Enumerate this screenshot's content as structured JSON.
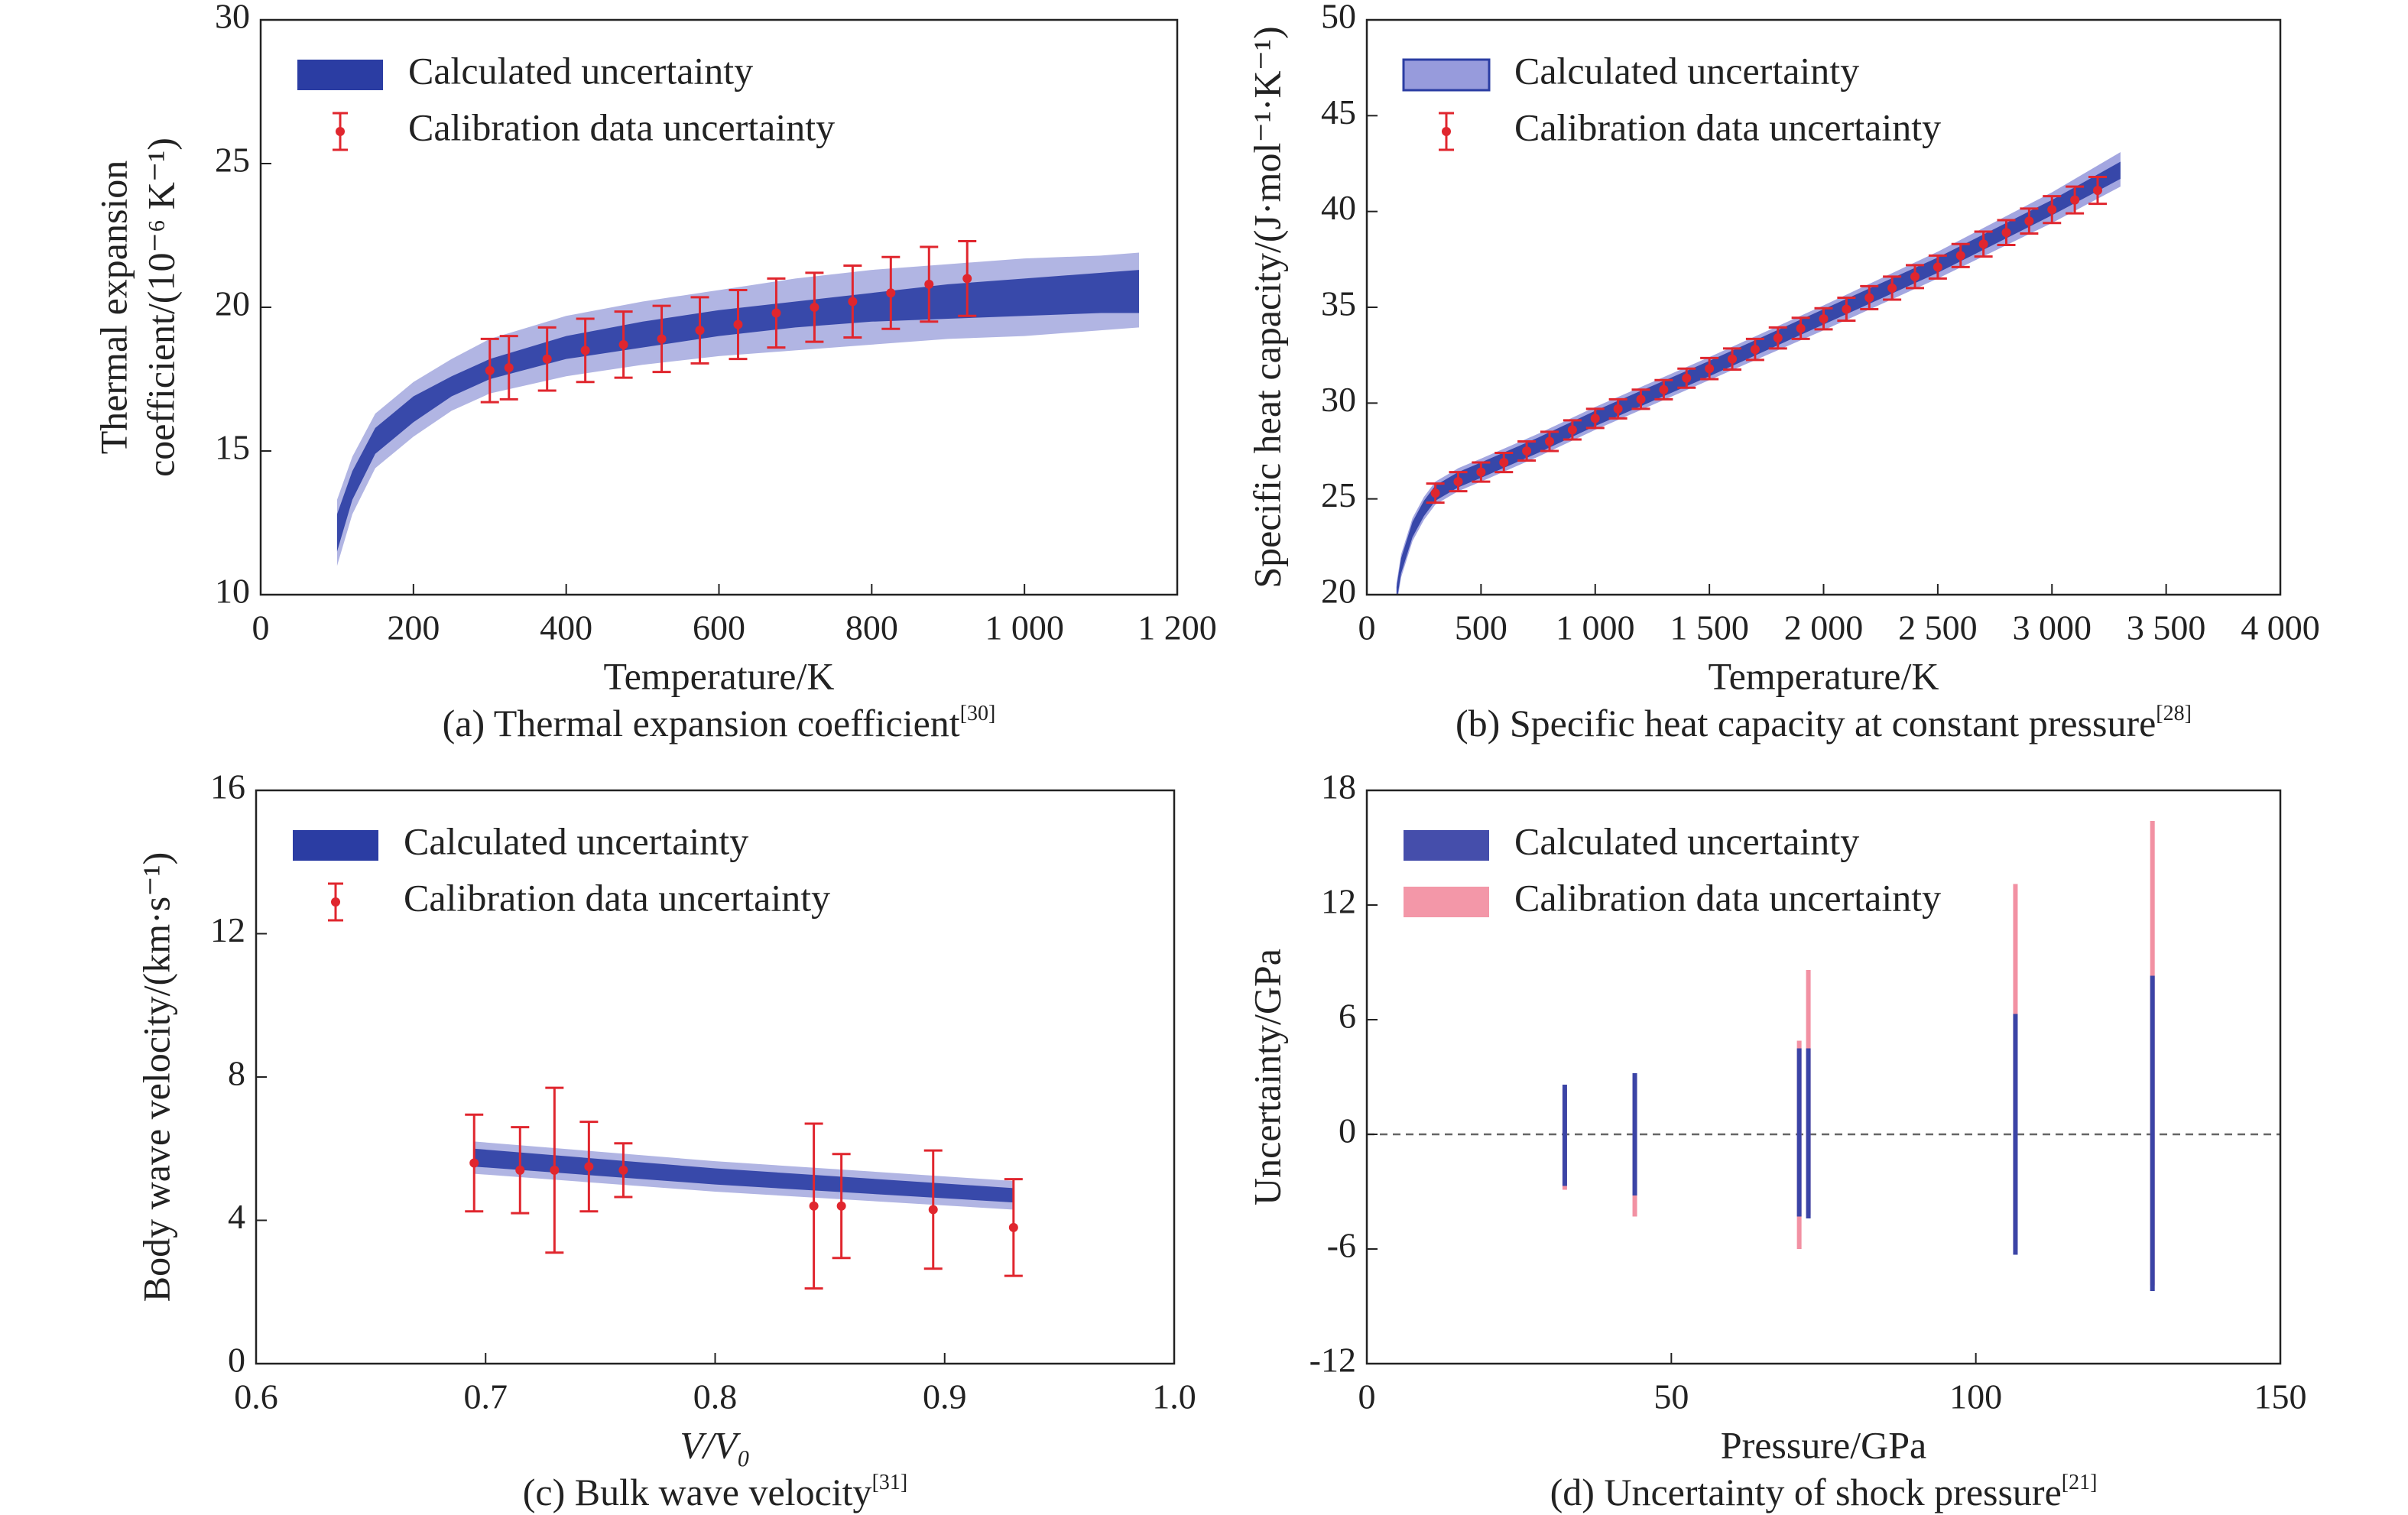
{
  "chart_data": [
    {
      "type": "band-errorbar",
      "caption": "(a) Thermal expansion coefficient",
      "caption_ref": "[30]",
      "xlabel": "Temperature/K",
      "ylabel": [
        "Thermal expansion",
        "coefficient/(10⁻⁶ K⁻¹)"
      ],
      "xlim": [
        0,
        1200
      ],
      "xticks": [
        0,
        200,
        400,
        600,
        800,
        {
          "value": 1000,
          "label": "1 000"
        },
        {
          "value": 1200,
          "label": "1 200"
        }
      ],
      "ylim": [
        10,
        30
      ],
      "yticks": [
        10,
        15,
        20,
        25,
        30
      ],
      "legend": "upper left",
      "series": [
        {
          "name": "Calculated uncertainty",
          "kind": "band",
          "color": "#2b3da3",
          "outer_color": "#9ea2dc",
          "x": [
            100,
            120,
            150,
            200,
            250,
            300,
            400,
            500,
            600,
            700,
            800,
            900,
            1000,
            1100,
            1150
          ],
          "lower": [
            11.5,
            13.3,
            14.9,
            16.0,
            16.9,
            17.5,
            18.2,
            18.6,
            19.0,
            19.3,
            19.5,
            19.6,
            19.7,
            19.8,
            19.8
          ],
          "upper": [
            12.8,
            14.3,
            15.8,
            16.9,
            17.6,
            18.2,
            19.0,
            19.5,
            19.9,
            20.2,
            20.5,
            20.8,
            21.0,
            21.2,
            21.3
          ],
          "outer_lower": [
            11.0,
            12.8,
            14.4,
            15.5,
            16.4,
            17.0,
            17.6,
            18.0,
            18.3,
            18.5,
            18.7,
            18.9,
            19.0,
            19.2,
            19.3
          ],
          "outer_upper": [
            13.3,
            14.8,
            16.3,
            17.4,
            18.2,
            18.9,
            19.7,
            20.2,
            20.6,
            21.0,
            21.3,
            21.5,
            21.7,
            21.8,
            21.9
          ]
        },
        {
          "name": "Calibration data uncertainty",
          "kind": "errorbar",
          "color": "#e0262e",
          "x": [
            300,
            325,
            375,
            425,
            475,
            525,
            575,
            625,
            675,
            725,
            775,
            825,
            875,
            925
          ],
          "values": [
            17.8,
            17.9,
            18.2,
            18.5,
            18.7,
            18.9,
            19.2,
            19.4,
            19.8,
            20.0,
            20.2,
            20.5,
            20.8,
            21.0
          ],
          "errors": [
            1.1,
            1.1,
            1.1,
            1.1,
            1.15,
            1.15,
            1.15,
            1.2,
            1.2,
            1.2,
            1.25,
            1.25,
            1.3,
            1.3
          ]
        }
      ]
    },
    {
      "type": "band-errorbar",
      "caption": "(b) Specific heat capacity at constant pressure",
      "caption_ref": "[28]",
      "xlabel": "Temperature/K",
      "ylabel": [
        "Specific heat capacity/(J·mol⁻¹·K⁻¹)"
      ],
      "xlim": [
        0,
        4000
      ],
      "xticks": [
        0,
        500,
        {
          "value": 1000,
          "label": "1 000"
        },
        {
          "value": 1500,
          "label": "1 500"
        },
        {
          "value": 2000,
          "label": "2 000"
        },
        {
          "value": 2500,
          "label": "2 500"
        },
        {
          "value": 3000,
          "label": "3 000"
        },
        {
          "value": 3500,
          "label": "3 500"
        },
        {
          "value": 4000,
          "label": "4 000"
        }
      ],
      "ylim": [
        20,
        50
      ],
      "yticks": [
        20,
        25,
        30,
        35,
        40,
        45,
        50
      ],
      "legend": "upper left",
      "series": [
        {
          "name": "Calculated uncertainty",
          "kind": "band",
          "color": "#2b3da3",
          "outer_color": "#8c90d8",
          "x": [
            130,
            150,
            200,
            250,
            300,
            400,
            500,
            750,
            1000,
            1500,
            2000,
            2500,
            3000,
            3300
          ],
          "lower": [
            19.6,
            21.1,
            23.0,
            24.1,
            24.9,
            25.6,
            26.1,
            27.4,
            28.8,
            31.4,
            34.1,
            36.8,
            39.8,
            41.7
          ],
          "upper": [
            20.4,
            21.9,
            23.8,
            24.9,
            25.7,
            26.4,
            26.9,
            28.2,
            29.6,
            32.2,
            34.9,
            37.6,
            40.6,
            42.6
          ],
          "outer_lower": [
            19.4,
            20.9,
            22.8,
            23.9,
            24.7,
            25.4,
            25.9,
            27.2,
            28.6,
            31.2,
            33.8,
            36.5,
            39.4,
            41.3
          ],
          "outer_upper": [
            20.6,
            22.1,
            24.0,
            25.1,
            25.9,
            26.6,
            27.1,
            28.4,
            29.8,
            32.4,
            35.1,
            37.9,
            41.0,
            43.1
          ]
        },
        {
          "name": "Calibration data uncertainty",
          "kind": "errorbar",
          "color": "#e0262e",
          "x": [
            300,
            400,
            500,
            600,
            700,
            800,
            900,
            1000,
            1100,
            1200,
            1300,
            1400,
            1500,
            1600,
            1700,
            1800,
            1900,
            2000,
            2100,
            2200,
            2300,
            2400,
            2500,
            2600,
            2700,
            2800,
            2900,
            3000,
            3100,
            3200
          ],
          "values": [
            25.3,
            25.9,
            26.4,
            26.9,
            27.5,
            28.0,
            28.6,
            29.2,
            29.7,
            30.2,
            30.7,
            31.3,
            31.8,
            32.3,
            32.8,
            33.4,
            33.9,
            34.4,
            34.9,
            35.5,
            36.0,
            36.6,
            37.1,
            37.7,
            38.3,
            38.9,
            39.5,
            40.1,
            40.6,
            41.1
          ],
          "errors": [
            0.5,
            0.5,
            0.5,
            0.5,
            0.5,
            0.5,
            0.5,
            0.5,
            0.5,
            0.5,
            0.5,
            0.5,
            0.55,
            0.55,
            0.55,
            0.55,
            0.55,
            0.55,
            0.6,
            0.6,
            0.6,
            0.6,
            0.6,
            0.6,
            0.65,
            0.65,
            0.65,
            0.7,
            0.7,
            0.7
          ]
        }
      ]
    },
    {
      "type": "band-errorbar",
      "caption": "(c) Bulk wave velocity",
      "caption_ref": "[31]",
      "xlabel": "V/V₀",
      "ylabel": [
        "Body wave velocity/(km·s⁻¹)"
      ],
      "xlim": [
        0.6,
        1.0
      ],
      "xticks": [
        0.6,
        0.7,
        0.8,
        0.9,
        {
          "value": 1.0,
          "label": "1.0"
        }
      ],
      "ylim": [
        0,
        16
      ],
      "yticks": [
        0,
        4,
        8,
        12,
        16
      ],
      "legend": "upper left",
      "series": [
        {
          "name": "Calculated uncertainty",
          "kind": "band",
          "color": "#2b3da3",
          "outer_color": "#9ea2dc",
          "x": [
            0.695,
            0.8,
            0.93
          ],
          "lower": [
            5.5,
            5.0,
            4.5
          ],
          "upper": [
            6.0,
            5.45,
            4.9
          ],
          "outer_lower": [
            5.3,
            4.8,
            4.3
          ],
          "outer_upper": [
            6.2,
            5.65,
            5.1
          ]
        },
        {
          "name": "Calibration data uncertainty",
          "kind": "errorbar",
          "color": "#e0262e",
          "x": [
            0.695,
            0.715,
            0.73,
            0.745,
            0.76,
            0.843,
            0.855,
            0.895,
            0.93
          ],
          "values": [
            5.6,
            5.4,
            5.4,
            5.5,
            5.4,
            4.4,
            4.4,
            4.3,
            3.8
          ],
          "errors": [
            1.35,
            1.2,
            2.3,
            1.25,
            0.75,
            2.3,
            1.45,
            1.65,
            1.35
          ]
        }
      ]
    },
    {
      "type": "range-bar",
      "caption": "(d) Uncertainty of shock pressure",
      "caption_ref": "[21]",
      "xlabel": "Pressure/GPa",
      "ylabel": [
        "Uncertainty/GPa"
      ],
      "xlim": [
        0,
        150
      ],
      "xticks": [
        0,
        50,
        100,
        150
      ],
      "ylim": [
        -12,
        18
      ],
      "yticks": [
        -12,
        -6,
        0,
        6,
        12,
        18
      ],
      "hline": 0,
      "legend": "upper left",
      "series": [
        {
          "name": "Calculated uncertainty",
          "color": "#3b44a6",
          "x": [
            32.5,
            44,
            71,
            72.5,
            106.5,
            129
          ],
          "lower": [
            -2.7,
            -3.2,
            -4.3,
            -4.4,
            -6.3,
            -8.2
          ],
          "upper": [
            2.6,
            3.2,
            4.5,
            4.5,
            6.3,
            8.3
          ]
        },
        {
          "name": "Calibration data uncertainty",
          "color": "#f291a3",
          "x": [
            32.5,
            44,
            71,
            72.5,
            106.5,
            129
          ],
          "lower": [
            -2.9,
            -4.3,
            -6.0,
            -4.2,
            -6.0,
            -7.9
          ],
          "upper": [
            2.4,
            3.0,
            4.9,
            8.6,
            13.1,
            16.4
          ]
        }
      ]
    }
  ]
}
